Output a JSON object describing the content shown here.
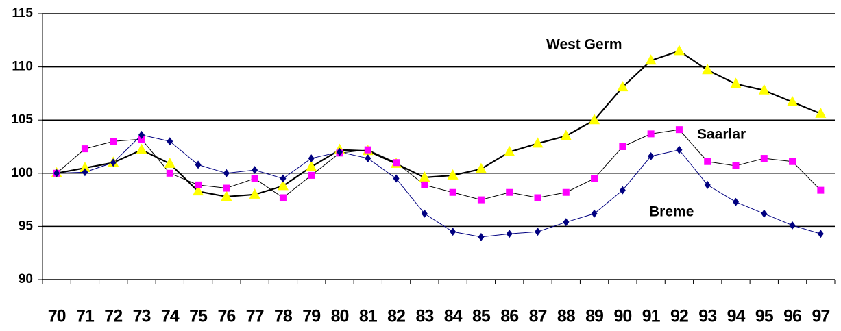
{
  "chart_data": {
    "type": "line",
    "categories": [
      "70",
      "71",
      "72",
      "73",
      "74",
      "75",
      "76",
      "77",
      "78",
      "79",
      "80",
      "81",
      "82",
      "83",
      "84",
      "85",
      "86",
      "87",
      "88",
      "89",
      "90",
      "91",
      "92",
      "93",
      "94",
      "95",
      "96",
      "97"
    ],
    "series": [
      {
        "name": "West Germ",
        "color": "#ffff00",
        "line_color": "#000000",
        "marker": "triangle",
        "values": [
          100,
          100.5,
          101,
          102.2,
          100.9,
          98.3,
          97.8,
          98,
          98.8,
          100.6,
          102.2,
          102.1,
          100.9,
          99.6,
          99.8,
          100.4,
          102,
          102.8,
          103.5,
          105,
          108.1,
          110.6,
          111.5,
          109.7,
          108.4,
          107.8,
          106.7,
          105.6
        ]
      },
      {
        "name": "Saarlar",
        "color": "#ff00ff",
        "line_color": "#000000",
        "marker": "square",
        "values": [
          100,
          102.3,
          103,
          103.2,
          100,
          98.9,
          98.6,
          99.5,
          97.7,
          99.8,
          101.9,
          102.2,
          101,
          98.9,
          98.2,
          97.5,
          98.2,
          97.7,
          98.2,
          99.5,
          102.5,
          103.7,
          104.1,
          101.1,
          100.7,
          101.4,
          101.1,
          98.4
        ]
      },
      {
        "name": "Breme",
        "color": "#000080",
        "line_color": "#000080",
        "marker": "diamond",
        "values": [
          100,
          100.1,
          101,
          103.6,
          103,
          100.8,
          100,
          100.3,
          99.5,
          101.4,
          102,
          101.4,
          99.5,
          96.2,
          94.5,
          94,
          94.3,
          94.5,
          95.4,
          96.2,
          98.4,
          101.6,
          102.2,
          98.9,
          97.3,
          96.2,
          95.1,
          94.3
        ]
      }
    ],
    "ylim": [
      90,
      115
    ],
    "yticks": [
      90,
      95,
      100,
      105,
      110,
      115
    ],
    "grid": true
  }
}
